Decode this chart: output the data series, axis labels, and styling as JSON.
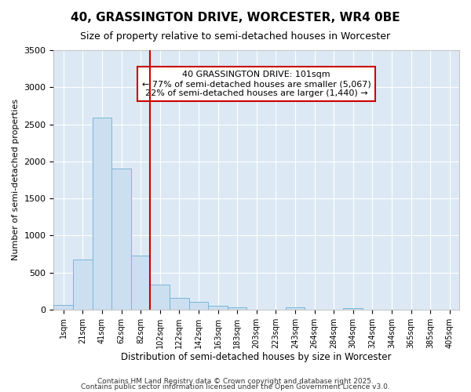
{
  "title": "40, GRASSINGTON DRIVE, WORCESTER, WR4 0BE",
  "subtitle": "Size of property relative to semi-detached houses in Worcester",
  "xlabel": "Distribution of semi-detached houses by size in Worcester",
  "ylabel": "Number of semi-detached properties",
  "bin_labels": [
    "1sqm",
    "21sqm",
    "41sqm",
    "62sqm",
    "82sqm",
    "102sqm",
    "122sqm",
    "142sqm",
    "163sqm",
    "183sqm",
    "203sqm",
    "223sqm",
    "243sqm",
    "264sqm",
    "284sqm",
    "304sqm",
    "324sqm",
    "344sqm",
    "365sqm",
    "385sqm",
    "405sqm"
  ],
  "bar_values": [
    60,
    680,
    2590,
    1900,
    730,
    340,
    155,
    100,
    50,
    25,
    0,
    0,
    30,
    0,
    0,
    20,
    0,
    0,
    0,
    0,
    0
  ],
  "bar_color": "#ccdff0",
  "bar_edge_color": "#7ab5d8",
  "background_color": "#ffffff",
  "plot_bg_color": "#dce9f5",
  "grid_color": "#ffffff",
  "property_line_x": 5,
  "annotation_text": "40 GRASSINGTON DRIVE: 101sqm\n← 77% of semi-detached houses are smaller (5,067)\n22% of semi-detached houses are larger (1,440) →",
  "annotation_box_color": "#ffffff",
  "annotation_edge_color": "#cc0000",
  "vline_color": "#cc0000",
  "ylim": [
    0,
    3500
  ],
  "footer1": "Contains HM Land Registry data © Crown copyright and database right 2025.",
  "footer2": "Contains public sector information licensed under the Open Government Licence v3.0."
}
